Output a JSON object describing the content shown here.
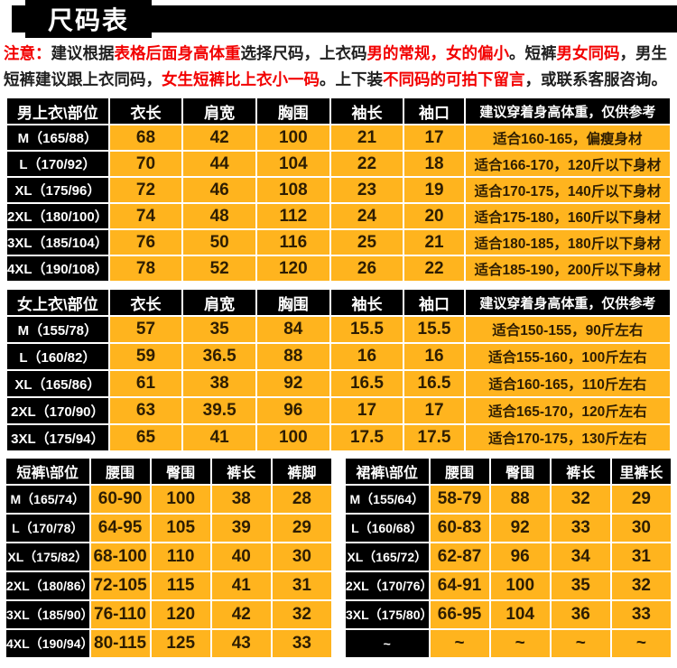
{
  "page_title": "尺码表",
  "colors": {
    "table_orange": "#FFB41E",
    "notice_red": "#F20000",
    "header_black": "#000000",
    "value_text": "#2E1D02"
  },
  "notice": {
    "lines": [
      {
        "segments": [
          {
            "text": "注意：",
            "color": "red"
          },
          {
            "text": "建议根据",
            "color": "dark"
          },
          {
            "text": "表格后面身高体重",
            "color": "red"
          },
          {
            "text": "选择尺码，上衣码",
            "color": "dark"
          },
          {
            "text": "男的常规，女的偏小",
            "color": "red"
          },
          {
            "text": "。短裤",
            "color": "dark"
          },
          {
            "text": "男女同码",
            "color": "red"
          },
          {
            "text": "，男生",
            "color": "dark"
          }
        ]
      },
      {
        "segments": [
          {
            "text": "短裤建议跟上衣同码，",
            "color": "dark"
          },
          {
            "text": "女生短裤比上衣小一码",
            "color": "red"
          },
          {
            "text": "。上下装",
            "color": "dark"
          },
          {
            "text": "不同码的可拍下留言",
            "color": "red"
          },
          {
            "text": "，或联系客服咨询。",
            "color": "dark"
          }
        ]
      }
    ]
  },
  "tables": {
    "men_top": {
      "headers": [
        "男上衣\\部位",
        "衣长",
        "肩宽",
        "胸围",
        "袖长",
        "袖口",
        "建议穿着身高体重，仅供参考"
      ],
      "rows": [
        [
          "M（165/88）",
          "68",
          "42",
          "100",
          "21",
          "17",
          "适合160-165，偏瘦身材"
        ],
        [
          "L（170/92）",
          "70",
          "44",
          "104",
          "22",
          "18",
          "适合166-170，120斤以下身材"
        ],
        [
          "XL（175/96）",
          "72",
          "46",
          "108",
          "23",
          "19",
          "适合170-175，140斤以下身材"
        ],
        [
          "2XL（180/100）",
          "74",
          "48",
          "112",
          "24",
          "20",
          "适合175-180，160斤以下身材"
        ],
        [
          "3XL（185/104）",
          "76",
          "50",
          "116",
          "25",
          "21",
          "适合180-185，180斤以下身材"
        ],
        [
          "4XL（190/108）",
          "78",
          "52",
          "120",
          "26",
          "22",
          "适合185-190，200斤以下身材"
        ]
      ]
    },
    "women_top": {
      "headers": [
        "女上衣\\部位",
        "衣长",
        "肩宽",
        "胸围",
        "袖长",
        "袖口",
        "建议穿着身高体重，仅供参考"
      ],
      "rows": [
        [
          "M（155/78）",
          "57",
          "35",
          "84",
          "15.5",
          "15.5",
          "适合150-155，90斤左右"
        ],
        [
          "L（160/82）",
          "59",
          "36.5",
          "88",
          "16",
          "16",
          "适合155-160，100斤左右"
        ],
        [
          "XL（165/86）",
          "61",
          "38",
          "92",
          "16.5",
          "16.5",
          "适合160-165，110斤左右"
        ],
        [
          "2XL（170/90）",
          "63",
          "39.5",
          "96",
          "17",
          "17",
          "适合165-170，120斤左右"
        ],
        [
          "3XL（175/94）",
          "65",
          "41",
          "100",
          "17.5",
          "17.5",
          "适合170-175，130斤左右"
        ]
      ]
    },
    "shorts": {
      "headers": [
        "短裤\\部位",
        "腰围",
        "臀围",
        "裤长",
        "裤脚"
      ],
      "rows": [
        [
          "M（165/74）",
          "60-90",
          "100",
          "38",
          "28"
        ],
        [
          "L（170/78）",
          "64-95",
          "105",
          "39",
          "29"
        ],
        [
          "XL（175/82）",
          "68-100",
          "110",
          "40",
          "30"
        ],
        [
          "2XL（180/86）",
          "72-105",
          "115",
          "41",
          "31"
        ],
        [
          "3XL（185/90）",
          "76-110",
          "120",
          "42",
          "32"
        ],
        [
          "4XL（190/94）",
          "80-115",
          "125",
          "43",
          "33"
        ]
      ]
    },
    "skirt_pants": {
      "headers": [
        "裙裤\\部位",
        "腰围",
        "臀围",
        "裤长",
        "里裤长"
      ],
      "rows": [
        [
          "M（155/64）",
          "58-79",
          "88",
          "32",
          "29"
        ],
        [
          "L（160/68）",
          "60-83",
          "92",
          "33",
          "30"
        ],
        [
          "XL（165/72）",
          "62-87",
          "96",
          "34",
          "31"
        ],
        [
          "2XL（170/76）",
          "64-91",
          "100",
          "35",
          "32"
        ],
        [
          "3XL（175/80）",
          "66-95",
          "104",
          "36",
          "33"
        ],
        [
          "~",
          "~",
          "~",
          "~",
          "~"
        ]
      ]
    }
  }
}
